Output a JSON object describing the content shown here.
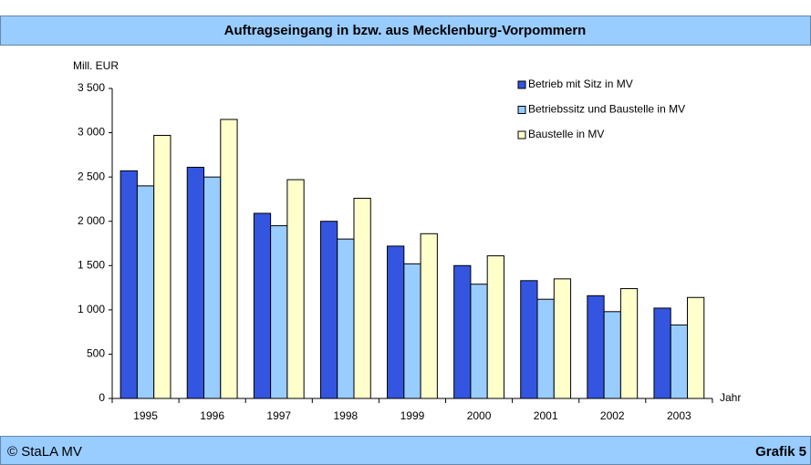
{
  "chart_data": {
    "type": "bar",
    "title": "Auftragseingang in bzw. aus Mecklenburg-Vorpommern",
    "y_label": "Mill. EUR",
    "x_label": "Jahr",
    "categories": [
      "1995",
      "1996",
      "1997",
      "1998",
      "1999",
      "2000",
      "2001",
      "2002",
      "2003"
    ],
    "series": [
      {
        "name": "Betrieb mit Sitz in MV",
        "color": "#3355e0",
        "values": [
          2570,
          2610,
          2090,
          2000,
          1720,
          1500,
          1330,
          1160,
          1020
        ]
      },
      {
        "name": "Betriebssitz und Baustelle in MV",
        "color": "#99ccff",
        "values": [
          2400,
          2500,
          1950,
          1800,
          1520,
          1290,
          1120,
          980,
          830
        ]
      },
      {
        "name": "Baustelle in MV",
        "color": "#ffffcc",
        "values": [
          2970,
          3150,
          2470,
          2260,
          1860,
          1610,
          1350,
          1240,
          1140
        ]
      }
    ],
    "ylim": [
      0,
      3500
    ],
    "yticks": [
      0,
      500,
      {
        "value": 1000,
        "label": "1 000"
      },
      {
        "value": 1500,
        "label": "1 500"
      },
      {
        "value": 2000,
        "label": "2 000"
      },
      {
        "value": 2500,
        "label": "2 500"
      },
      {
        "value": 3000,
        "label": "3 000"
      },
      {
        "value": 3500,
        "label": "3 500"
      }
    ],
    "grid": false,
    "legend": "top-right"
  },
  "footer": {
    "source": "© StaLA MV",
    "label": "Grafik 5"
  }
}
